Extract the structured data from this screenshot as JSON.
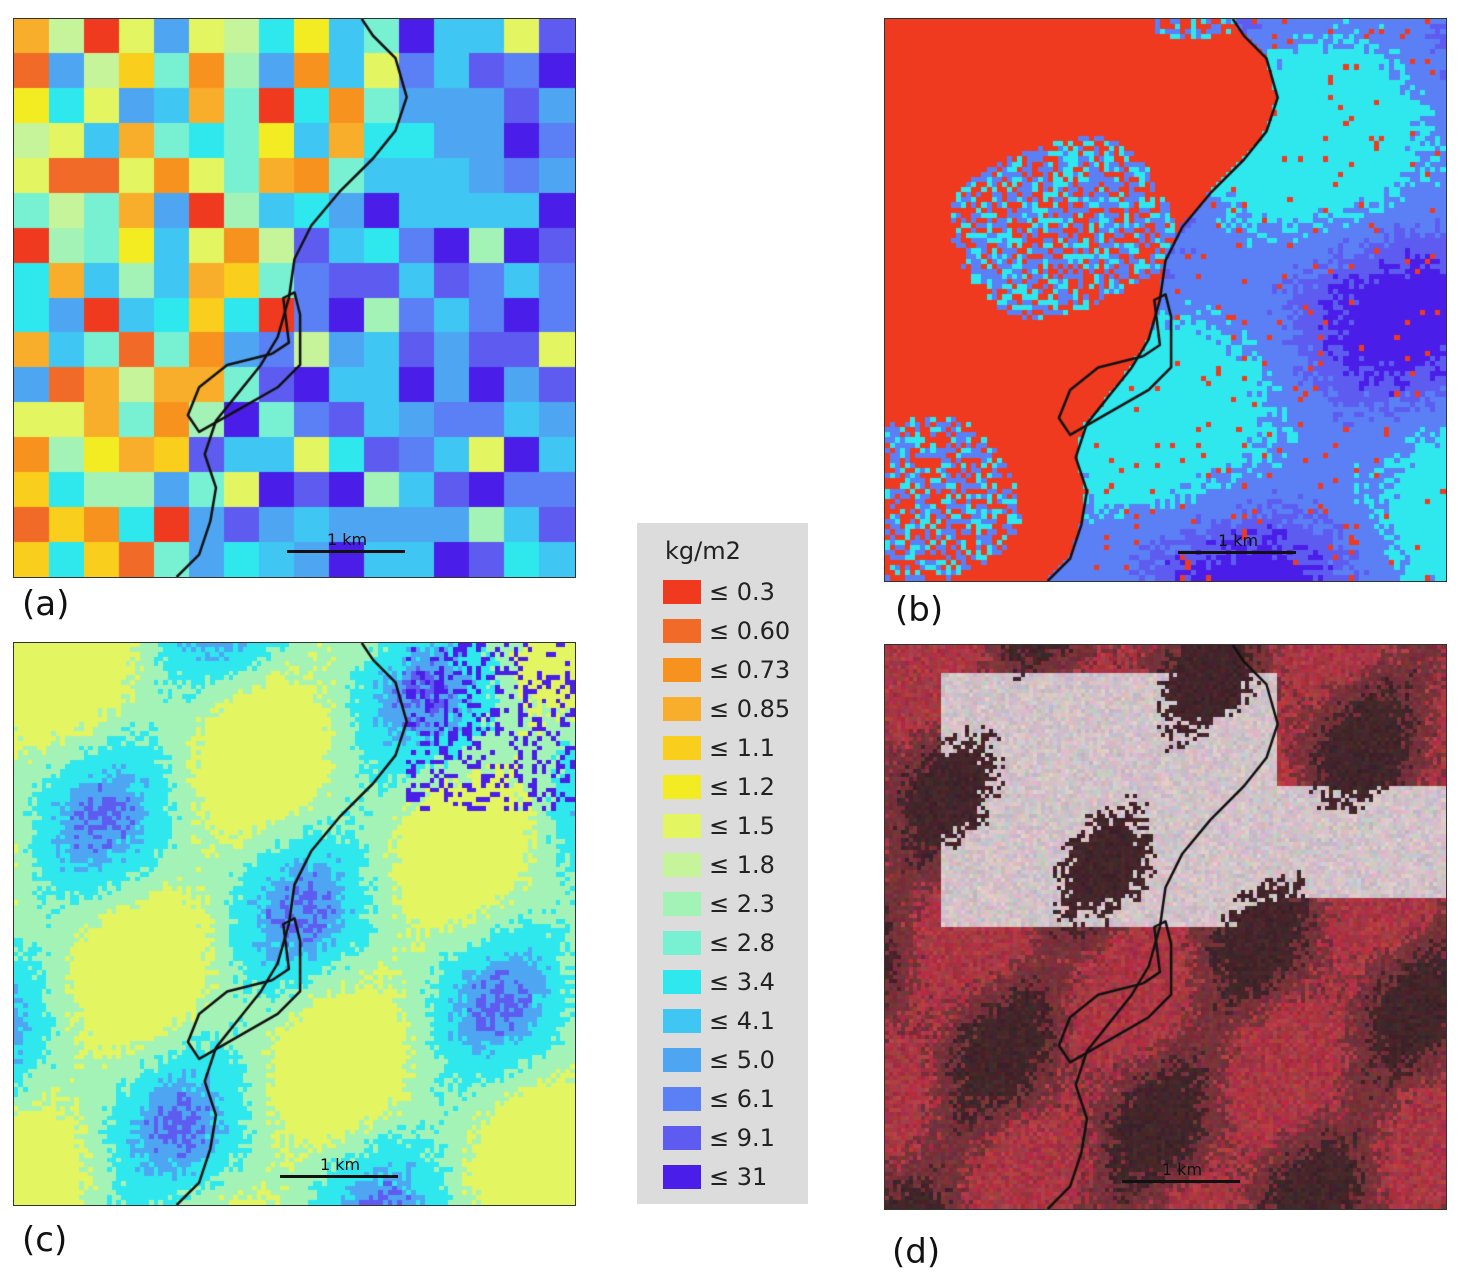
{
  "panels": [
    {
      "id": "a",
      "label": "(a)",
      "scale_text": "1 km",
      "style": "coarse"
    },
    {
      "id": "b",
      "label": "(b)",
      "scale_text": "1 km",
      "style": "fine-red"
    },
    {
      "id": "c",
      "label": "(c)",
      "scale_text": "1 km",
      "style": "fine-yellow"
    },
    {
      "id": "d",
      "label": "(d)",
      "scale_text": "1 km",
      "style": "false-color"
    }
  ],
  "legend": {
    "title": "kg/m2",
    "items": [
      {
        "label": "≤ 0.3",
        "color": "#f03a20"
      },
      {
        "label": "≤ 0.60",
        "color": "#f26a28"
      },
      {
        "label": "≤ 0.73",
        "color": "#f7921e"
      },
      {
        "label": "≤ 0.85",
        "color": "#f8ae2a"
      },
      {
        "label": "≤ 1.1",
        "color": "#f9ce1c"
      },
      {
        "label": "≤ 1.2",
        "color": "#f4ec22"
      },
      {
        "label": "≤ 1.5",
        "color": "#e3f560"
      },
      {
        "label": "≤ 1.8",
        "color": "#c6f49a"
      },
      {
        "label": "≤ 2.3",
        "color": "#a4f3b6"
      },
      {
        "label": "≤ 2.8",
        "color": "#78f1d2"
      },
      {
        "label": "≤ 3.4",
        "color": "#2ee8ee"
      },
      {
        "label": "≤ 4.1",
        "color": "#3fc6f2"
      },
      {
        "label": "≤ 5.0",
        "color": "#4ea6f2"
      },
      {
        "label": "≤ 6.1",
        "color": "#5b7ff4"
      },
      {
        "label": "≤ 9.1",
        "color": "#5e5cf0"
      },
      {
        "label": "≤ 31",
        "color": "#4a1ee8"
      }
    ]
  }
}
